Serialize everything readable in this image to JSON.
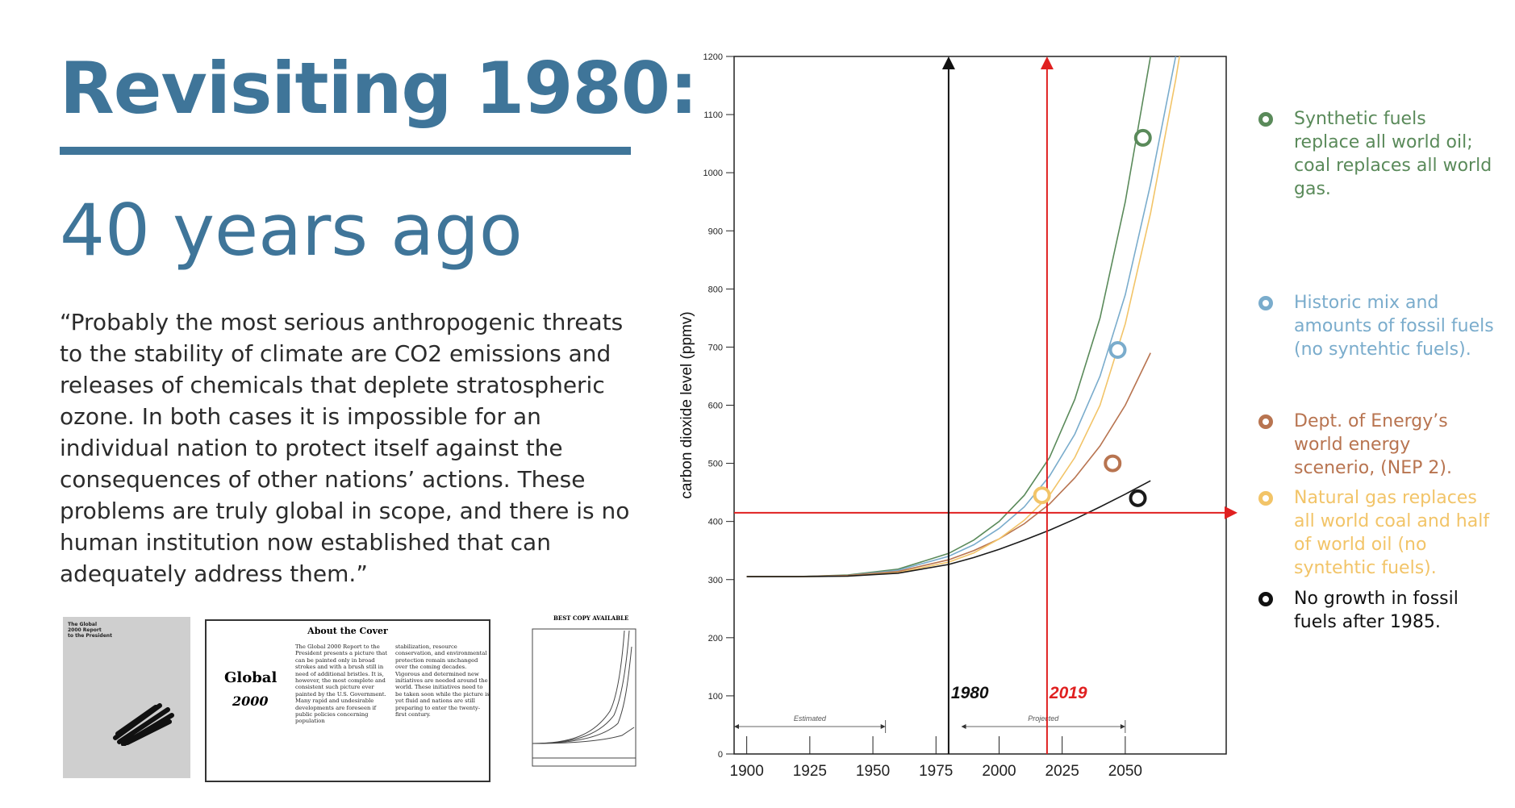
{
  "header": {
    "title": "Revisiting 1980:",
    "subtitle": "40 years ago"
  },
  "quote": "“Probably the most serious anthropogenic threats to the stability of climate are CO2 emissions and releases of chemicals that deplete stratospheric ozone. In both cases it is impossible for an individual nation to protect itself against the consequences of other nations’ actions. These problems are truly global in scope, and there is no human institution now established that can adequately address them.”",
  "thumbnails": {
    "report_cover_title": "The Global\n2000 Report\nto the President",
    "about_cover": {
      "heading": "About the Cover",
      "logo_word": "Global",
      "logo_number": "2000",
      "col1": "The Global 2000 Report to the President presents a picture that can be painted only in broad strokes and with a brush still in need of additional bristles. It is, however, the most complete and consistent such picture ever painted by the U.S. Government. Many rapid and undesirable developments are foreseen if public policies concerning population",
      "col2": "stabilization, resource conservation, and environmental protection remain unchanged over the coming decades. Vigorous and determined new initiatives are needed around the world. These initiatives need to be taken soon while the picture is yet fluid and nations are still preparing to enter the twenty-first century."
    },
    "original_chart_caption": "BEST COPY AVAILABLE"
  },
  "chart_data": {
    "type": "line",
    "ylabel": "carbon dioxide level (ppmv)",
    "xlim": [
      1895,
      2090
    ],
    "ylim": [
      0,
      1200
    ],
    "x_ticks": [
      1900,
      1925,
      1950,
      1975,
      2000,
      2025,
      2050
    ],
    "y_ticks": [
      0,
      100,
      200,
      300,
      400,
      500,
      600,
      700,
      800,
      900,
      1000,
      1100,
      1200
    ],
    "period_labels": [
      {
        "text": "Estimated",
        "from": 1895,
        "to": 1955
      },
      {
        "text": "Projected",
        "from": 1985,
        "to": 2050
      }
    ],
    "markers": [
      {
        "label": "1980",
        "x": 1980,
        "color": "#111111"
      },
      {
        "label": "2019",
        "x": 2019,
        "color": "#e02020"
      }
    ],
    "reference_level": {
      "y": 415,
      "color": "#e02020"
    },
    "series": [
      {
        "color": "#5a8a5a",
        "x": [
          1900,
          1920,
          1940,
          1960,
          1980,
          1990,
          2000,
          2010,
          2020,
          2030,
          2040,
          2050,
          2060,
          2068
        ],
        "y": [
          305,
          305,
          308,
          318,
          345,
          368,
          400,
          445,
          510,
          610,
          750,
          950,
          1200,
          1430
        ],
        "point": {
          "x": 2057,
          "y": 1060
        }
      },
      {
        "color": "#7aaccc",
        "x": [
          1900,
          1920,
          1940,
          1960,
          1980,
          1990,
          2000,
          2010,
          2020,
          2030,
          2040,
          2050,
          2060,
          2070,
          2075
        ],
        "y": [
          305,
          305,
          307,
          316,
          340,
          360,
          388,
          425,
          478,
          550,
          650,
          790,
          980,
          1200,
          1360
        ],
        "point": {
          "x": 2047,
          "y": 695
        }
      },
      {
        "color": "#b87450",
        "x": [
          1900,
          1920,
          1940,
          1960,
          1980,
          1990,
          2000,
          2010,
          2020,
          2030,
          2040,
          2050,
          2060
        ],
        "y": [
          305,
          305,
          307,
          314,
          334,
          350,
          370,
          396,
          430,
          475,
          530,
          600,
          690
        ],
        "point": {
          "x": 2045,
          "y": 500
        }
      },
      {
        "color": "#f2c468",
        "x": [
          1900,
          1920,
          1940,
          1960,
          1980,
          1990,
          2000,
          2010,
          2020,
          2030,
          2040,
          2050,
          2060,
          2070,
          2076
        ],
        "y": [
          305,
          305,
          306,
          312,
          330,
          346,
          370,
          402,
          445,
          510,
          600,
          740,
          930,
          1160,
          1320
        ],
        "point": {
          "x": 2017,
          "y": 445
        }
      },
      {
        "color": "#1a1a1a",
        "x": [
          1900,
          1920,
          1940,
          1960,
          1980,
          1990,
          2000,
          2010,
          2020,
          2030,
          2040,
          2050,
          2060
        ],
        "y": [
          305,
          305,
          306,
          311,
          326,
          338,
          352,
          368,
          385,
          404,
          425,
          447,
          470
        ],
        "point": {
          "x": 2055,
          "y": 440
        }
      }
    ]
  },
  "legend": [
    {
      "text": "Synthetic fuels replace all world oil; coal replaces all world gas.",
      "color": "#5a8a5a"
    },
    {
      "text": "Historic mix and amounts of fossil fuels (no syntehtic fuels).",
      "color": "#7aaccc"
    },
    {
      "text": "Dept. of Energy’s world energy scenerio, (NEP 2).",
      "color": "#b87450"
    },
    {
      "text": "Natural gas replaces all world coal and half of world oil (no syntehtic fuels).",
      "color": "#f2c468"
    },
    {
      "text": "No growth in fossil fuels after 1985.",
      "color": "#111111"
    }
  ]
}
